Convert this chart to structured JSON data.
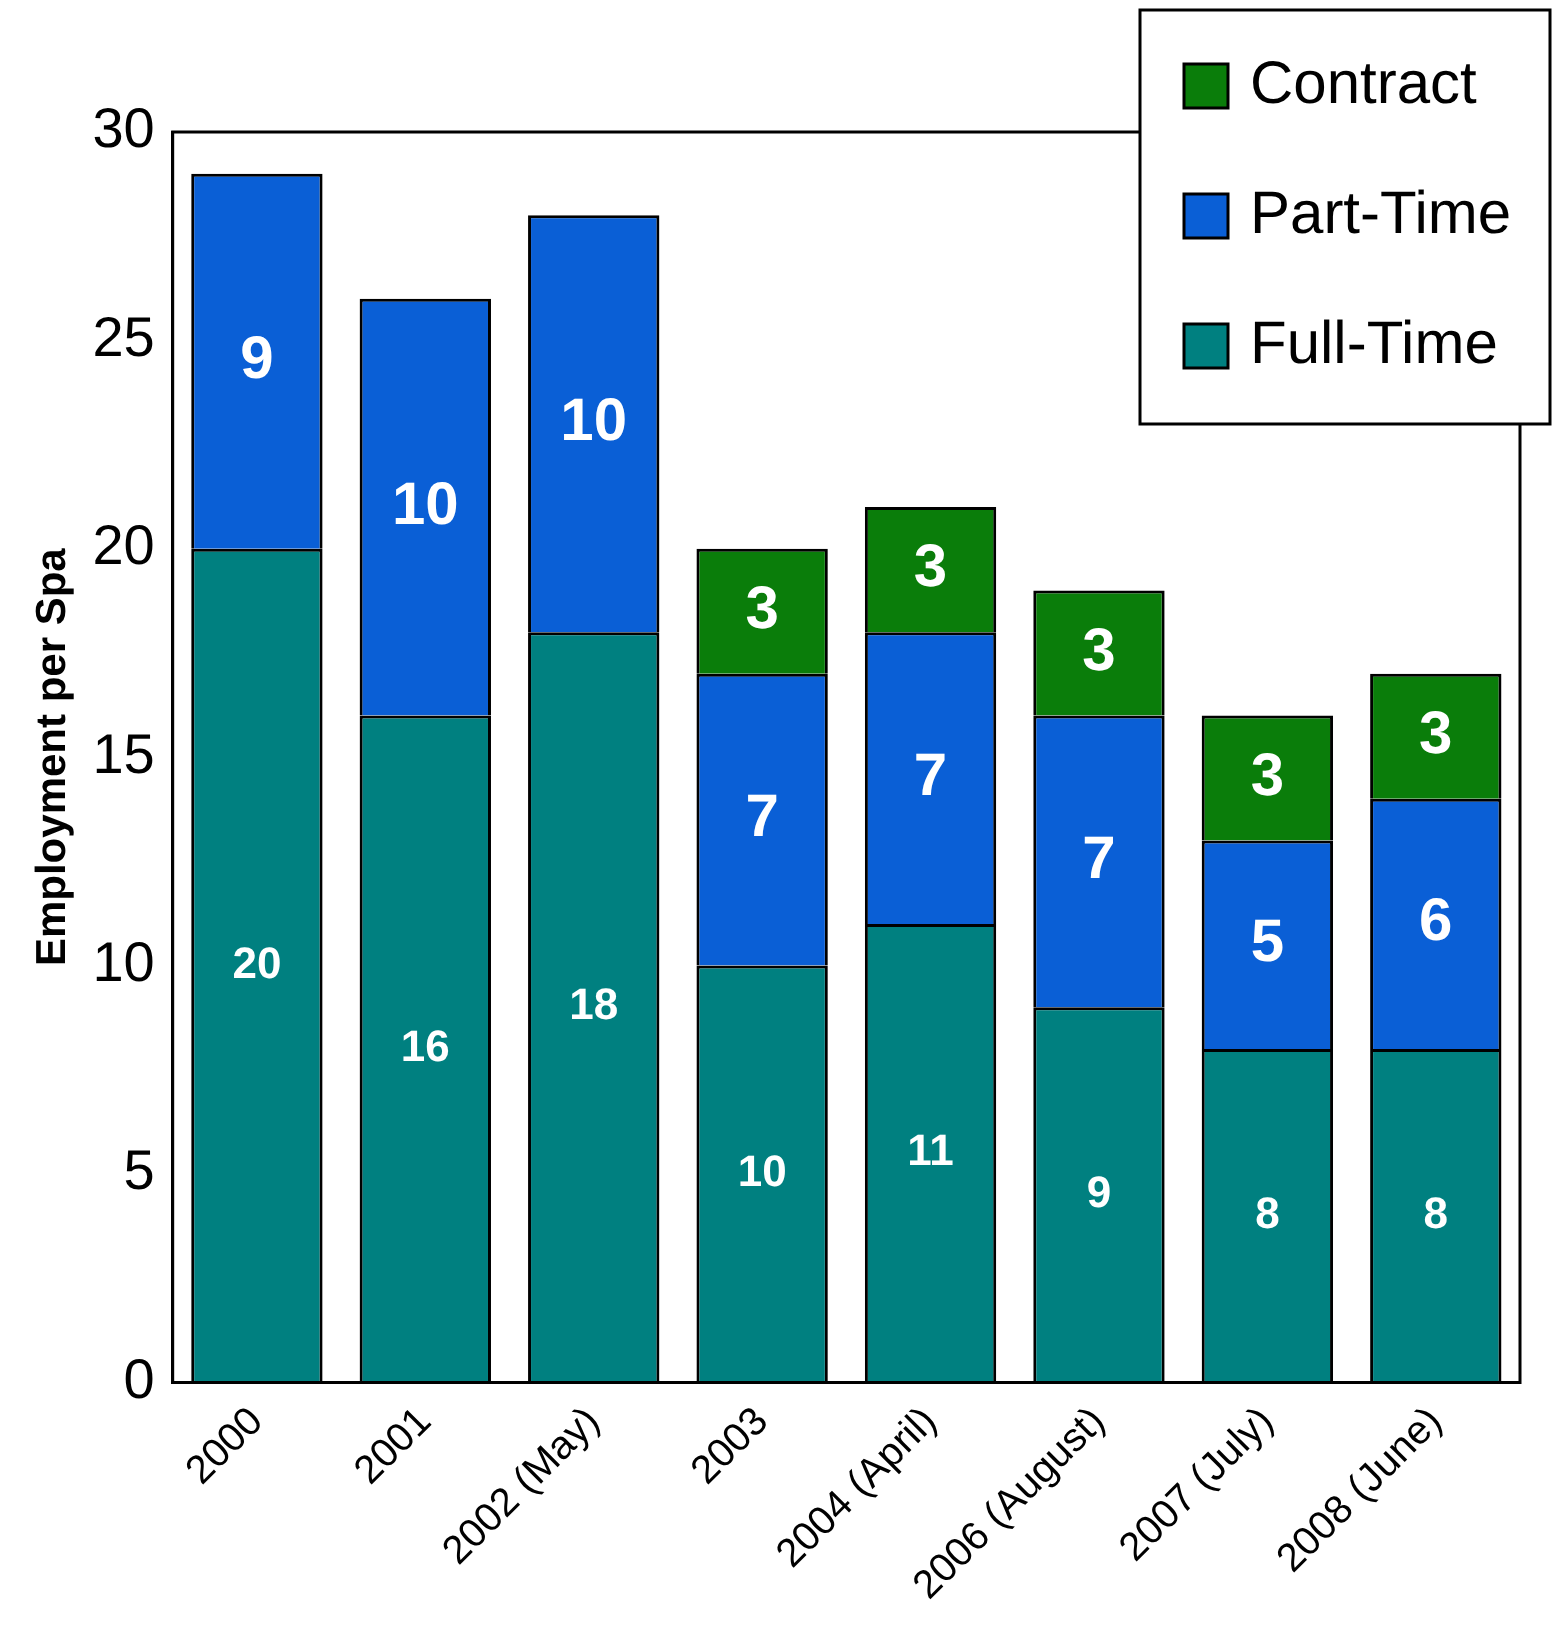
{
  "chart_data": {
    "type": "bar",
    "stacked": true,
    "ylabel": "Employment per Spa",
    "categories": [
      "2000",
      "2001",
      "2002 (May)",
      "2003",
      "2004 (April)",
      "2006 (August)",
      "2007 (July)",
      "2008 (June)"
    ],
    "series": [
      {
        "name": "Full-Time",
        "color": "#008080",
        "values": [
          20,
          16,
          18,
          10,
          11,
          9,
          8,
          8
        ]
      },
      {
        "name": "Part-Time",
        "color": "#0a5fd6",
        "values": [
          9,
          10,
          10,
          7,
          7,
          7,
          5,
          6
        ]
      },
      {
        "name": "Contract",
        "color": "#0a7d0a",
        "values": [
          null,
          null,
          null,
          3,
          3,
          3,
          3,
          3
        ]
      }
    ],
    "ylim": [
      0,
      30
    ],
    "yticks": [
      0,
      5,
      10,
      15,
      20,
      25,
      30
    ],
    "grid": false,
    "legend": "top right",
    "data_labels": true
  }
}
